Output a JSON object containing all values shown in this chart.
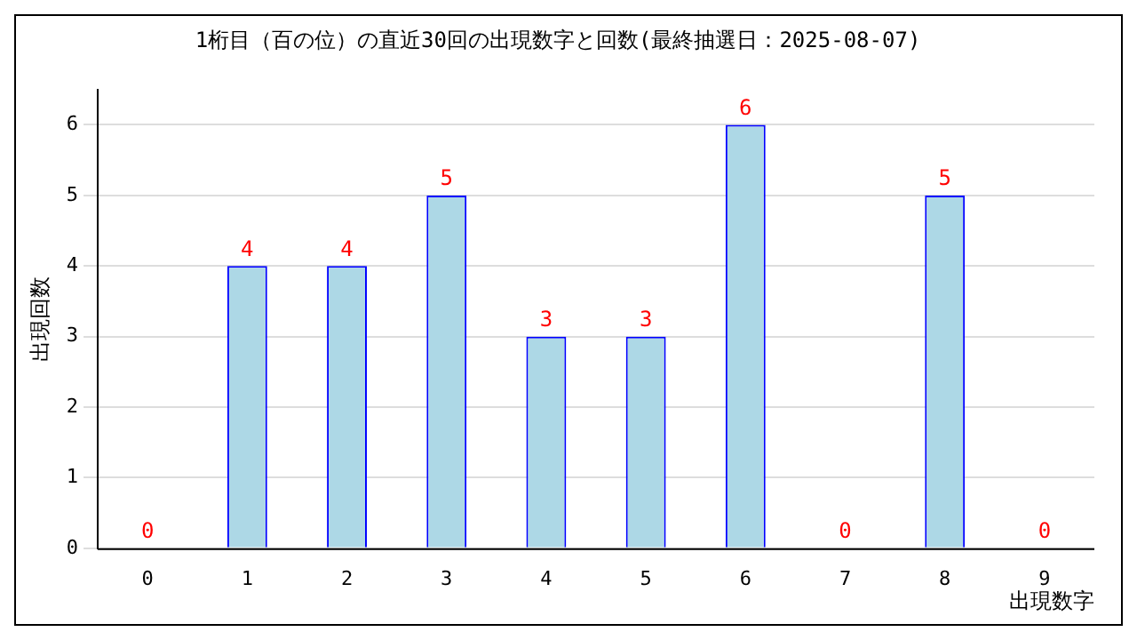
{
  "chart_data": {
    "type": "bar",
    "title": "1桁目（百の位）の直近30回の出現数字と回数(最終抽選日：2025-08-07)",
    "xlabel": "出現数字",
    "ylabel": "出現回数",
    "categories": [
      "0",
      "1",
      "2",
      "3",
      "4",
      "5",
      "6",
      "7",
      "8",
      "9"
    ],
    "values": [
      0,
      4,
      4,
      5,
      3,
      3,
      6,
      0,
      5,
      0
    ],
    "color": "#add8e6",
    "ylim": [
      0,
      6.5
    ],
    "yticks": [
      0,
      1,
      2,
      3,
      4,
      5,
      6
    ],
    "grid": "y",
    "data_labels": true
  }
}
